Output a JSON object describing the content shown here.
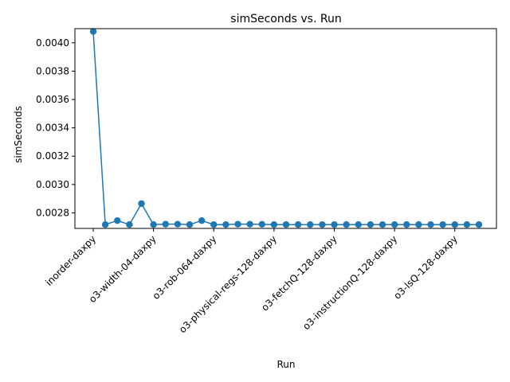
{
  "chart_data": {
    "type": "line",
    "title": "simSeconds vs. Run",
    "xlabel": "Run",
    "ylabel": "simSeconds",
    "line_color": "#1f77b4",
    "marker": "circle",
    "grid": false,
    "legend": "none",
    "x_tick_labels": [
      {
        "index": 0,
        "label": "inorder-daxpy"
      },
      {
        "index": 5,
        "label": "o3-width-04-daxpy"
      },
      {
        "index": 10,
        "label": "o3-rob-064-daxpy"
      },
      {
        "index": 15,
        "label": "o3-physical-regs-128-daxpy"
      },
      {
        "index": 20,
        "label": "o3-fetchQ-128-daxpy"
      },
      {
        "index": 25,
        "label": "o3-instructionQ-128-daxpy"
      },
      {
        "index": 30,
        "label": "o3-lsQ-128-daxpy"
      }
    ],
    "y_ticks": [
      "0.0028",
      "0.0030",
      "0.0032",
      "0.0034",
      "0.0036",
      "0.0038",
      "0.0040"
    ],
    "ylim": [
      0.00269,
      0.0041
    ],
    "values": [
      0.00408,
      0.002717,
      0.002745,
      0.002717,
      0.002865,
      0.002717,
      0.00272,
      0.00272,
      0.002717,
      0.002745,
      0.002717,
      0.002717,
      0.00272,
      0.00272,
      0.002719,
      0.002717,
      0.002717,
      0.002717,
      0.002717,
      0.002717,
      0.002717,
      0.002717,
      0.002717,
      0.002717,
      0.002717,
      0.002717,
      0.002717,
      0.002717,
      0.002717,
      0.002717,
      0.002717,
      0.002717,
      0.002717
    ]
  }
}
